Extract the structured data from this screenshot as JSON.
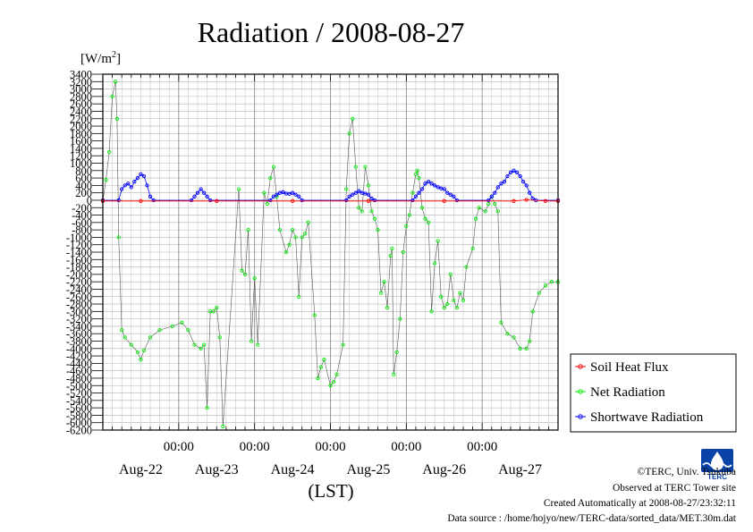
{
  "chart_data": {
    "type": "line",
    "title": "Radiation / 2008-08-27",
    "ylabel_unit_prefix": "[W/m",
    "ylabel_unit_exp": "2",
    "ylabel_unit_suffix": "]",
    "xlabel": "(LST)",
    "ylim": [
      -6200,
      3400
    ],
    "y_ticks": [
      "3400",
      "3200",
      "3000",
      "2800",
      "2600",
      "2400",
      "2200",
      "2000",
      "1800",
      "1600",
      "1400",
      "1200",
      "1000",
      "800",
      "600",
      "400",
      "200",
      "0",
      "-200",
      "-400",
      "-600",
      "-800",
      "-1000",
      "-1200",
      "-1400",
      "-1600",
      "-1800",
      "-2000",
      "-2200",
      "-2400",
      "-2600",
      "-2800",
      "-3000",
      "-3200",
      "-3400",
      "-3600",
      "-3800",
      "-4000",
      "-4200",
      "-4400",
      "-4600",
      "-4800",
      "-5000",
      "-5200",
      "-5400",
      "-5600",
      "-5800",
      "-6000",
      "-6200"
    ],
    "xlim_hours": [
      0,
      144
    ],
    "x_ticks": [
      {
        "hour": 24,
        "label": "00:00"
      },
      {
        "hour": 48,
        "label": "00:00"
      },
      {
        "hour": 72,
        "label": "00:00"
      },
      {
        "hour": 96,
        "label": "00:00"
      },
      {
        "hour": 120,
        "label": "00:00"
      }
    ],
    "dates": [
      {
        "hour": 12,
        "label": "Aug-22"
      },
      {
        "hour": 36,
        "label": "Aug-23"
      },
      {
        "hour": 60,
        "label": "Aug-24"
      },
      {
        "hour": 84,
        "label": "Aug-25"
      },
      {
        "hour": 108,
        "label": "Aug-26"
      },
      {
        "hour": 132,
        "label": "Aug-27"
      }
    ],
    "grid": true,
    "legend_position": "right",
    "series": [
      {
        "name": "Soil Heat Flux",
        "color": "#ff0000",
        "points": [
          [
            0,
            -20
          ],
          [
            12,
            -20
          ],
          [
            36,
            -20
          ],
          [
            60,
            -20
          ],
          [
            84,
            -20
          ],
          [
            108,
            -20
          ],
          [
            130,
            -20
          ],
          [
            134,
            10
          ],
          [
            140,
            -20
          ],
          [
            144,
            -20
          ]
        ]
      },
      {
        "name": "Net Radiation",
        "color": "#00ee00",
        "points": [
          [
            0,
            -20
          ],
          [
            1,
            550
          ],
          [
            2,
            1300
          ],
          [
            3,
            2800
          ],
          [
            4,
            3200
          ],
          [
            4.5,
            2200
          ],
          [
            5,
            -1000
          ],
          [
            6,
            -3500
          ],
          [
            7,
            -3700
          ],
          [
            9,
            -3900
          ],
          [
            11,
            -4100
          ],
          [
            12,
            -4300
          ],
          [
            13,
            -4050
          ],
          [
            15,
            -3700
          ],
          [
            18,
            -3500
          ],
          [
            22,
            -3400
          ],
          [
            25,
            -3300
          ],
          [
            27,
            -3500
          ],
          [
            29,
            -3900
          ],
          [
            31,
            -4000
          ],
          [
            32,
            -3900
          ],
          [
            33,
            -5600
          ],
          [
            34,
            -3000
          ],
          [
            35,
            -3000
          ],
          [
            36,
            -2900
          ],
          [
            37,
            -3700
          ],
          [
            38,
            -6100
          ],
          [
            43,
            300
          ],
          [
            44,
            -1900
          ],
          [
            45,
            -2000
          ],
          [
            46,
            -800
          ],
          [
            47,
            -3800
          ],
          [
            48,
            -2100
          ],
          [
            49,
            -3900
          ],
          [
            51,
            200
          ],
          [
            52,
            -100
          ],
          [
            53,
            600
          ],
          [
            54,
            900
          ],
          [
            55,
            100
          ],
          [
            56,
            -800
          ],
          [
            58,
            -1400
          ],
          [
            59,
            -1200
          ],
          [
            60,
            -800
          ],
          [
            61,
            -1000
          ],
          [
            62,
            -2600
          ],
          [
            63,
            -1000
          ],
          [
            64,
            -900
          ],
          [
            65,
            -600
          ],
          [
            67,
            -3100
          ],
          [
            68,
            -4800
          ],
          [
            69,
            -4500
          ],
          [
            70,
            -4300
          ],
          [
            72,
            -5000
          ],
          [
            73,
            -4900
          ],
          [
            74,
            -4700
          ],
          [
            76,
            -3900
          ],
          [
            77,
            300
          ],
          [
            78,
            1800
          ],
          [
            79,
            2200
          ],
          [
            80,
            900
          ],
          [
            81,
            -200
          ],
          [
            82,
            -300
          ],
          [
            83,
            900
          ],
          [
            84,
            400
          ],
          [
            85,
            -300
          ],
          [
            86,
            -500
          ],
          [
            87,
            -800
          ],
          [
            88,
            -2500
          ],
          [
            89,
            -2200
          ],
          [
            90,
            -2900
          ],
          [
            91,
            -1500
          ],
          [
            91.5,
            -1300
          ],
          [
            92,
            -4700
          ],
          [
            93,
            -4100
          ],
          [
            94,
            -3200
          ],
          [
            95,
            -1400
          ],
          [
            96,
            -700
          ],
          [
            97,
            -400
          ],
          [
            98,
            200
          ],
          [
            99,
            700
          ],
          [
            99.5,
            800
          ],
          [
            100,
            600
          ],
          [
            101,
            -200
          ],
          [
            102,
            -500
          ],
          [
            103,
            -600
          ],
          [
            104,
            -3000
          ],
          [
            105,
            -1700
          ],
          [
            106,
            -1100
          ],
          [
            107,
            -2600
          ],
          [
            108,
            -2900
          ],
          [
            109,
            -2800
          ],
          [
            110,
            -2000
          ],
          [
            111,
            -2700
          ],
          [
            112,
            -2900
          ],
          [
            113,
            -2500
          ],
          [
            114,
            -2700
          ],
          [
            115,
            -1800
          ],
          [
            117,
            -1300
          ],
          [
            118,
            -500
          ],
          [
            119,
            -200
          ],
          [
            121,
            -300
          ],
          [
            122,
            -100
          ],
          [
            123,
            100
          ],
          [
            124,
            -100
          ],
          [
            125,
            -300
          ],
          [
            126,
            -3300
          ],
          [
            128,
            -3600
          ],
          [
            130,
            -3700
          ],
          [
            132,
            -4000
          ],
          [
            134,
            -4000
          ],
          [
            135,
            -3800
          ],
          [
            136,
            -3000
          ],
          [
            138,
            -2500
          ],
          [
            140,
            -2300
          ],
          [
            142,
            -2200
          ],
          [
            144,
            -2200
          ]
        ]
      },
      {
        "name": "Shortwave Radiation",
        "color": "#0000ff",
        "points": [
          [
            0,
            0
          ],
          [
            5,
            0
          ],
          [
            6,
            300
          ],
          [
            7,
            400
          ],
          [
            8,
            450
          ],
          [
            9,
            350
          ],
          [
            10,
            500
          ],
          [
            11,
            600
          ],
          [
            12,
            700
          ],
          [
            13,
            650
          ],
          [
            14,
            400
          ],
          [
            15,
            100
          ],
          [
            16,
            0
          ],
          [
            28,
            0
          ],
          [
            29,
            100
          ],
          [
            30,
            200
          ],
          [
            31,
            300
          ],
          [
            32,
            200
          ],
          [
            33,
            100
          ],
          [
            34,
            0
          ],
          [
            53,
            0
          ],
          [
            54,
            100
          ],
          [
            55,
            150
          ],
          [
            56,
            200
          ],
          [
            57,
            220
          ],
          [
            58,
            180
          ],
          [
            59,
            170
          ],
          [
            60,
            200
          ],
          [
            61,
            150
          ],
          [
            62,
            100
          ],
          [
            63,
            0
          ],
          [
            77,
            0
          ],
          [
            78,
            100
          ],
          [
            79,
            150
          ],
          [
            80,
            200
          ],
          [
            81,
            250
          ],
          [
            82,
            200
          ],
          [
            83,
            180
          ],
          [
            84,
            150
          ],
          [
            85,
            50
          ],
          [
            86,
            0
          ],
          [
            98,
            0
          ],
          [
            99,
            100
          ],
          [
            100,
            200
          ],
          [
            101,
            300
          ],
          [
            102,
            450
          ],
          [
            103,
            500
          ],
          [
            104,
            450
          ],
          [
            105,
            400
          ],
          [
            106,
            350
          ],
          [
            107,
            320
          ],
          [
            108,
            300
          ],
          [
            109,
            200
          ],
          [
            110,
            150
          ],
          [
            111,
            100
          ],
          [
            112,
            0
          ],
          [
            122,
            0
          ],
          [
            123,
            100
          ],
          [
            124,
            200
          ],
          [
            125,
            350
          ],
          [
            126,
            450
          ],
          [
            127,
            500
          ],
          [
            128,
            650
          ],
          [
            129,
            750
          ],
          [
            130,
            800
          ],
          [
            131,
            750
          ],
          [
            132,
            650
          ],
          [
            133,
            500
          ],
          [
            134,
            400
          ],
          [
            135,
            200
          ],
          [
            136,
            50
          ],
          [
            137,
            0
          ],
          [
            144,
            0
          ]
        ]
      }
    ]
  },
  "footer": {
    "copyright": "©TERC, Univ. Tsukuba",
    "observed": "Observed at TERC Tower site",
    "created": "Created Automatically at 2008-08-27/23:32:11",
    "source": "Data source : /home/hojyo/new/TERC-data/sorted_data/MET.30m.dat"
  },
  "logo": {
    "text": "TERC",
    "color": "#0033aa"
  }
}
